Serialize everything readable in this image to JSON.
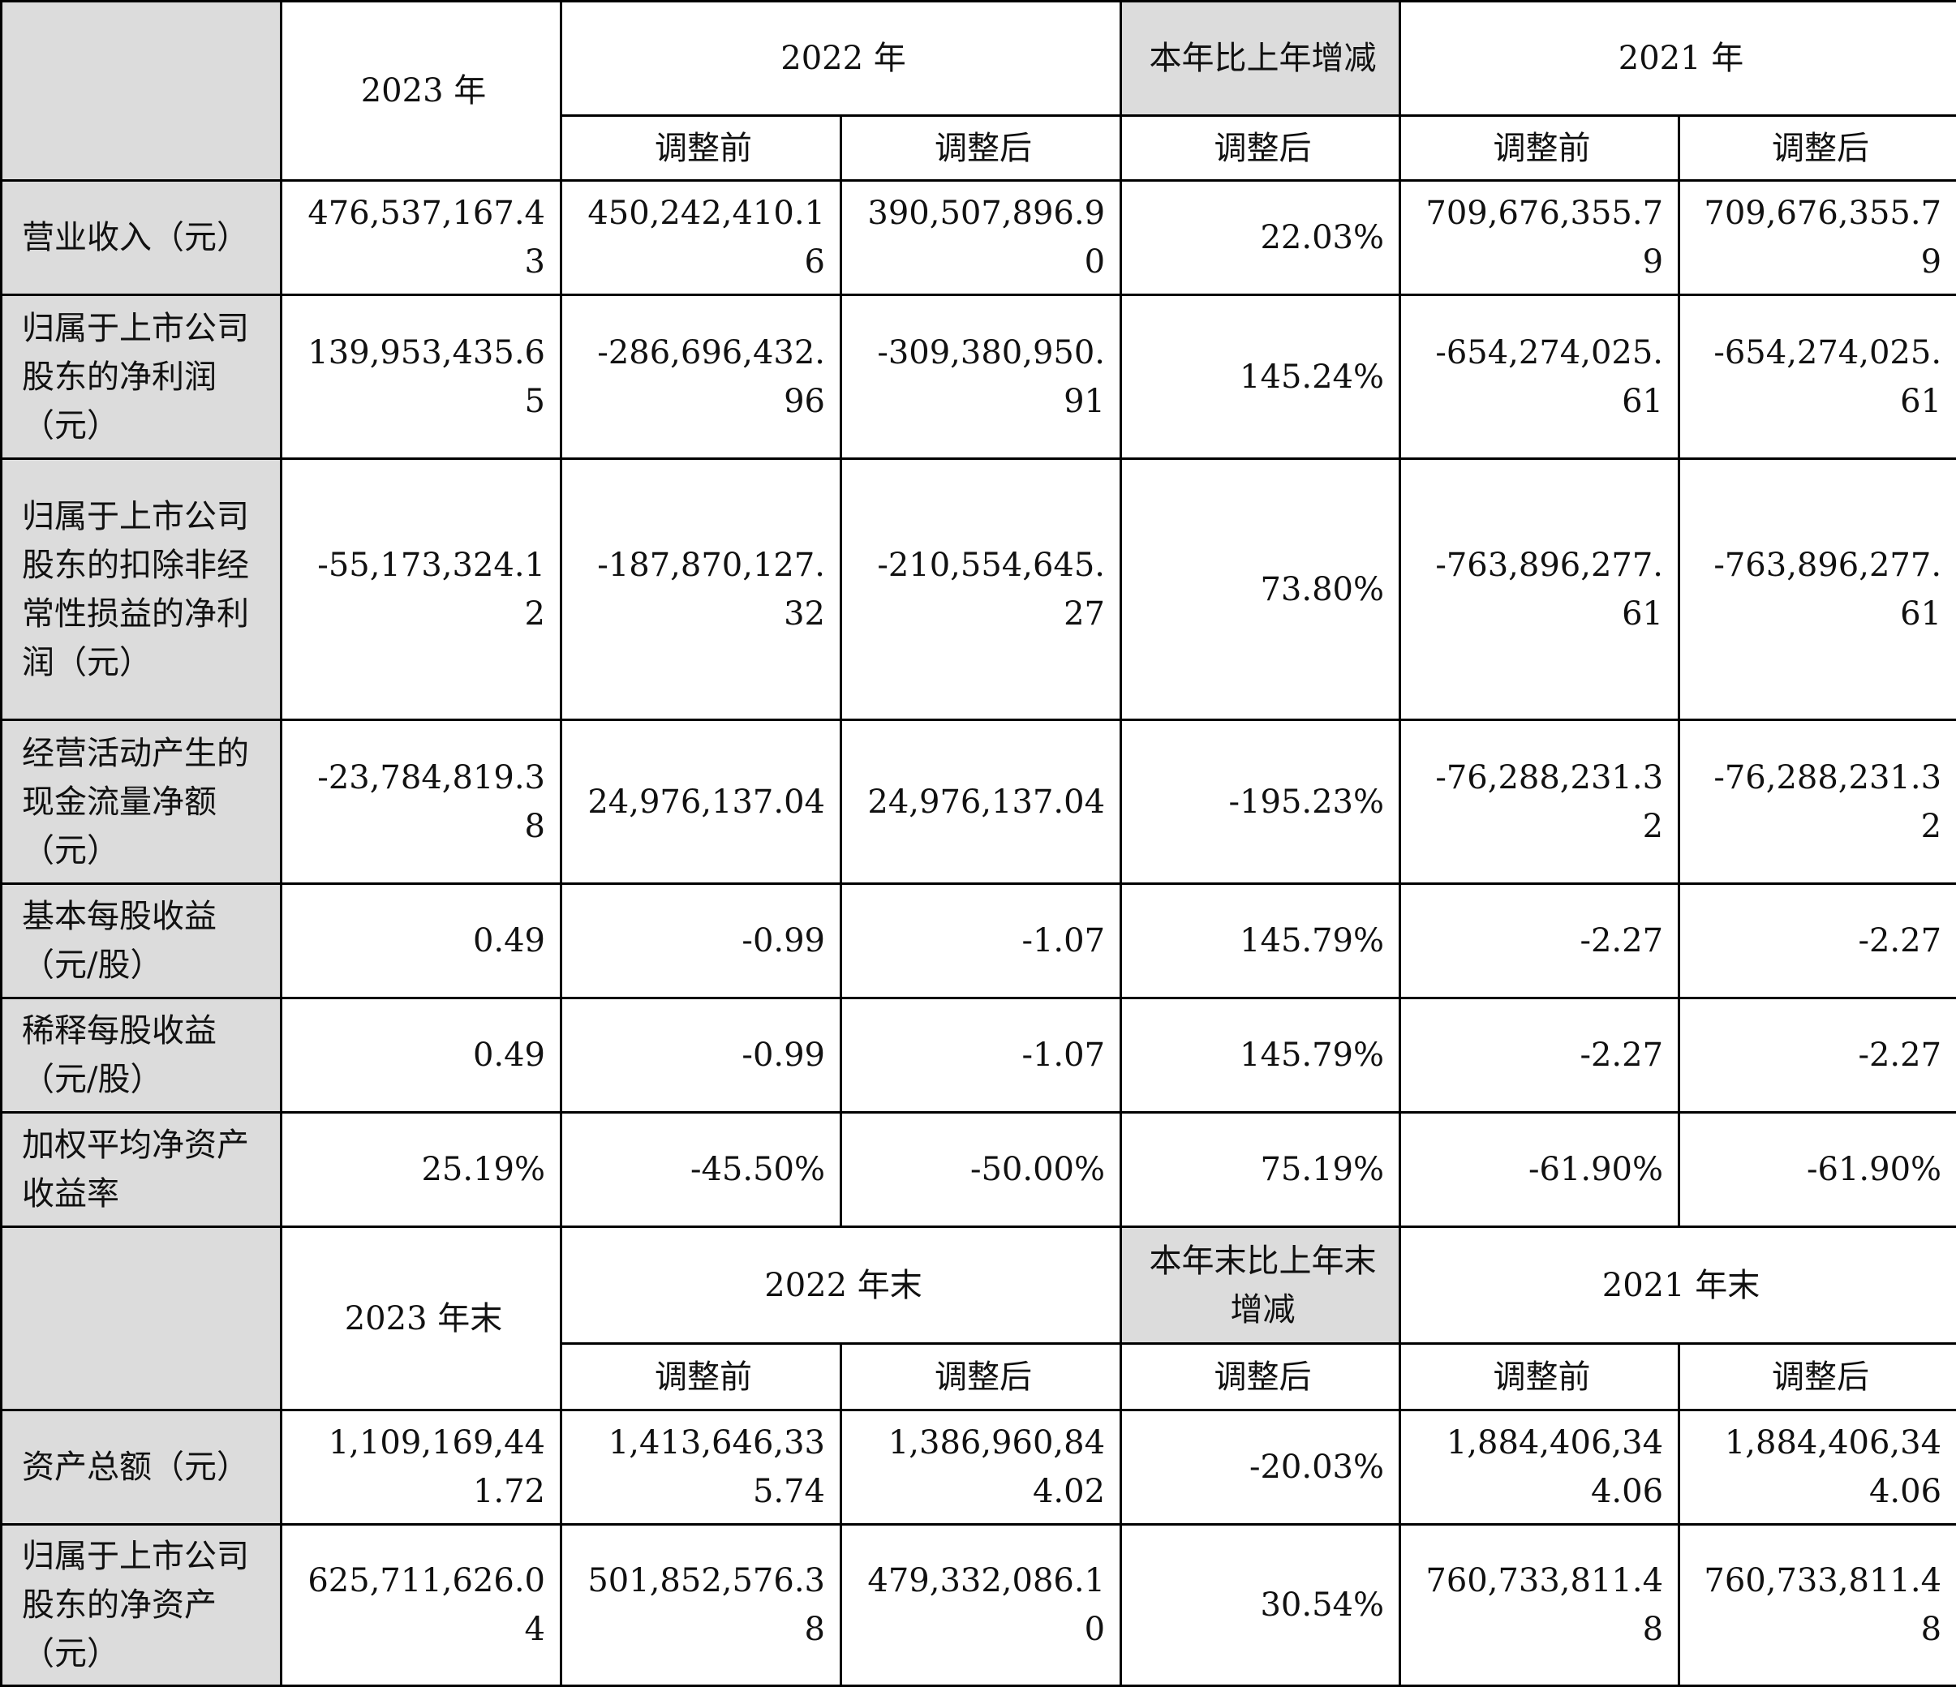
{
  "header1": {
    "col2023": "2023 年",
    "col2022": "2022 年",
    "colChange": "本年比上年增减",
    "col2021": "2021 年",
    "sub": [
      "调整前",
      "调整后",
      "调整后",
      "调整前",
      "调整后"
    ]
  },
  "rows1": [
    {
      "label": "营业收入（元）",
      "values": [
        "476,537,167.43",
        "450,242,410.16",
        "390,507,896.90",
        "22.03%",
        "709,676,355.79",
        "709,676,355.79"
      ]
    },
    {
      "label": "归属于上市公司股东的净利润（元）",
      "values": [
        "139,953,435.65",
        "-286,696,432.96",
        "-309,380,950.91",
        "145.24%",
        "-654,274,025.61",
        "-654,274,025.61"
      ]
    },
    {
      "label": "归属于上市公司股东的扣除非经常性损益的净利润（元）",
      "values": [
        "-55,173,324.12",
        "-187,870,127.32",
        "-210,554,645.27",
        "73.80%",
        "-763,896,277.61",
        "-763,896,277.61"
      ]
    },
    {
      "label": "经营活动产生的现金流量净额（元）",
      "values": [
        "-23,784,819.38",
        "24,976,137.04",
        "24,976,137.04",
        "-195.23%",
        "-76,288,231.32",
        "-76,288,231.32"
      ]
    },
    {
      "label": "基本每股收益（元/股）",
      "values": [
        "0.49",
        "-0.99",
        "-1.07",
        "145.79%",
        "-2.27",
        "-2.27"
      ]
    },
    {
      "label": "稀释每股收益（元/股）",
      "values": [
        "0.49",
        "-0.99",
        "-1.07",
        "145.79%",
        "-2.27",
        "-2.27"
      ]
    },
    {
      "label": "加权平均净资产收益率",
      "values": [
        "25.19%",
        "-45.50%",
        "-50.00%",
        "75.19%",
        "-61.90%",
        "-61.90%"
      ]
    }
  ],
  "header2": {
    "col2023": "2023 年末",
    "col2022": "2022 年末",
    "colChange": "本年末比上年末增减",
    "col2021": "2021 年末",
    "sub": [
      "调整前",
      "调整后",
      "调整后",
      "调整前",
      "调整后"
    ]
  },
  "rows2": [
    {
      "label": "资产总额（元）",
      "values": [
        "1,109,169,441.72",
        "1,413,646,335.74",
        "1,386,960,844.02",
        "-20.03%",
        "1,884,406,344.06",
        "1,884,406,344.06"
      ]
    },
    {
      "label": "归属于上市公司股东的净资产（元）",
      "values": [
        "625,711,626.04",
        "501,852,576.38",
        "479,332,086.10",
        "30.54%",
        "760,733,811.48",
        "760,733,811.48"
      ]
    }
  ]
}
